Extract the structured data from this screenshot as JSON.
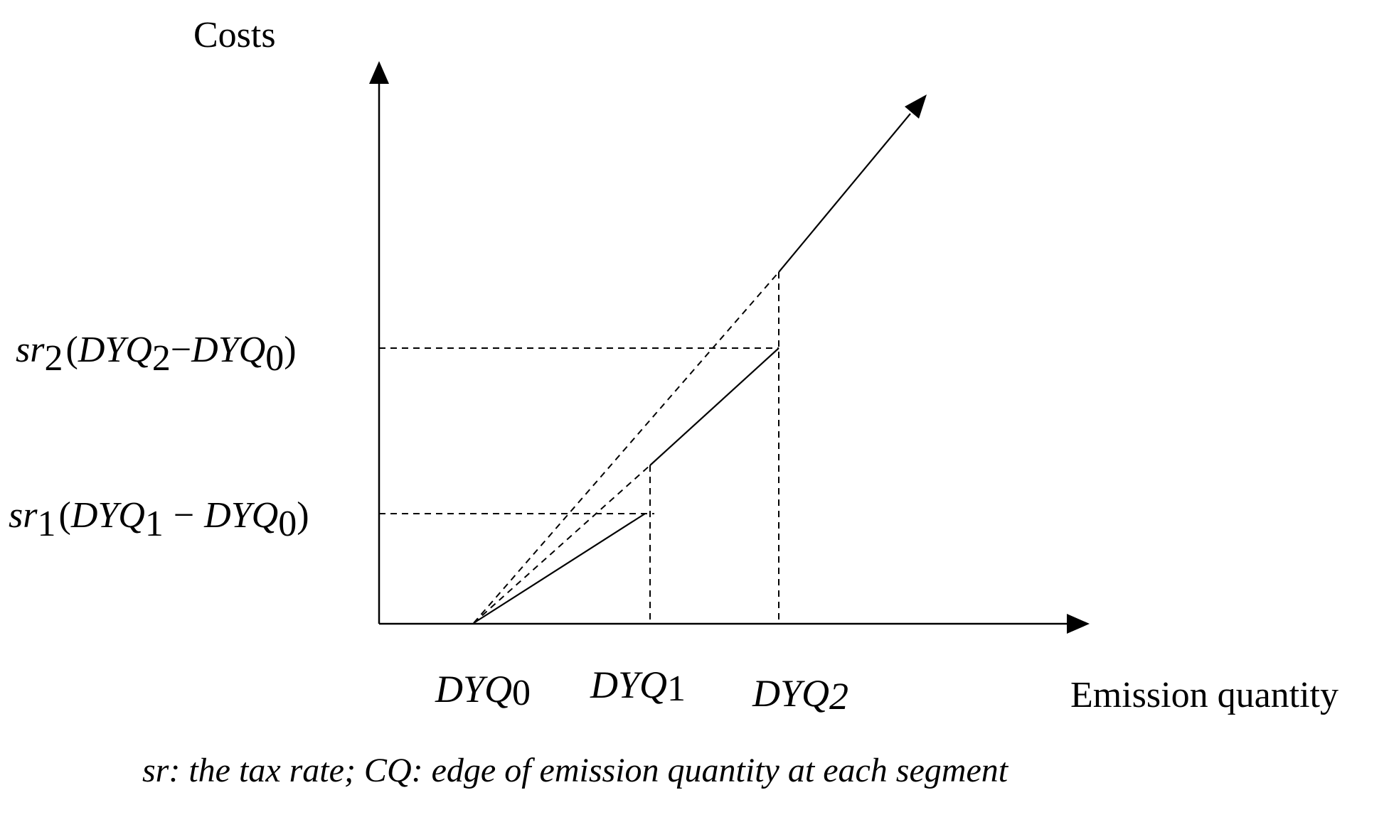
{
  "axes": {
    "y_title": "Costs",
    "x_title": "Emission quantity"
  },
  "x_ticks": [
    {
      "base": "DYQ",
      "sub": "0"
    },
    {
      "base": "DYQ",
      "sub": "1"
    },
    {
      "base": "DYQ",
      "sub": "2"
    }
  ],
  "y_labels": {
    "level2": {
      "coef": "sr",
      "coef_sub": "2",
      "open": "(",
      "a": "DYQ",
      "a_sub": "2",
      "minus": "−",
      "b": "DYQ",
      "b_sub": "0",
      "close": ")"
    },
    "level1": {
      "coef": "sr",
      "coef_sub": "1",
      "open": "(",
      "a": "DYQ",
      "a_sub": "1",
      "minus": "−",
      "b": "DYQ",
      "b_sub": "0",
      "close": ")"
    }
  },
  "caption": "sr: the tax rate; CQ: edge of emission quantity at each segment"
}
